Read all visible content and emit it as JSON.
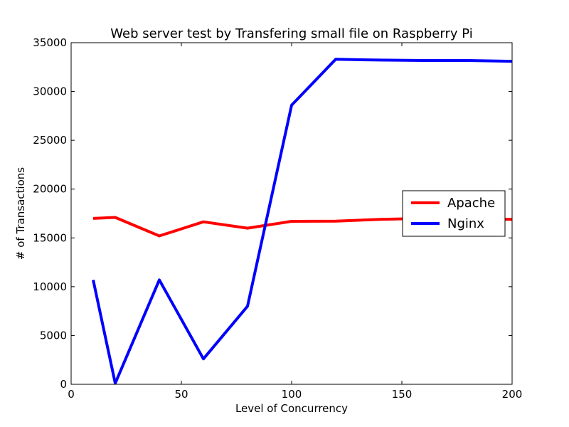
{
  "chart_data": {
    "type": "line",
    "title": "Web server test by Transfering small file on Raspberry Pi",
    "xlabel": "Level of Concurrency",
    "ylabel": "# of Transactions",
    "xlim": [
      0,
      200
    ],
    "ylim": [
      0,
      35000
    ],
    "xticks": [
      0,
      50,
      100,
      150,
      200
    ],
    "yticks": [
      0,
      5000,
      10000,
      15000,
      20000,
      25000,
      30000,
      35000
    ],
    "legend": "center-right",
    "grid": false,
    "series": [
      {
        "name": "Apache",
        "color": "#ff0000",
        "x": [
          10,
          20,
          40,
          60,
          80,
          100,
          120,
          140,
          160,
          180,
          200
        ],
        "y": [
          17000,
          17100,
          15200,
          16650,
          16000,
          16700,
          16720,
          16900,
          17000,
          16950,
          16900
        ]
      },
      {
        "name": "Nginx",
        "color": "#0000ff",
        "x": [
          10,
          20,
          40,
          60,
          80,
          100,
          120,
          140,
          160,
          180,
          200
        ],
        "y": [
          10700,
          100,
          10700,
          2600,
          8000,
          28600,
          33300,
          33220,
          33180,
          33180,
          33100
        ]
      }
    ]
  }
}
